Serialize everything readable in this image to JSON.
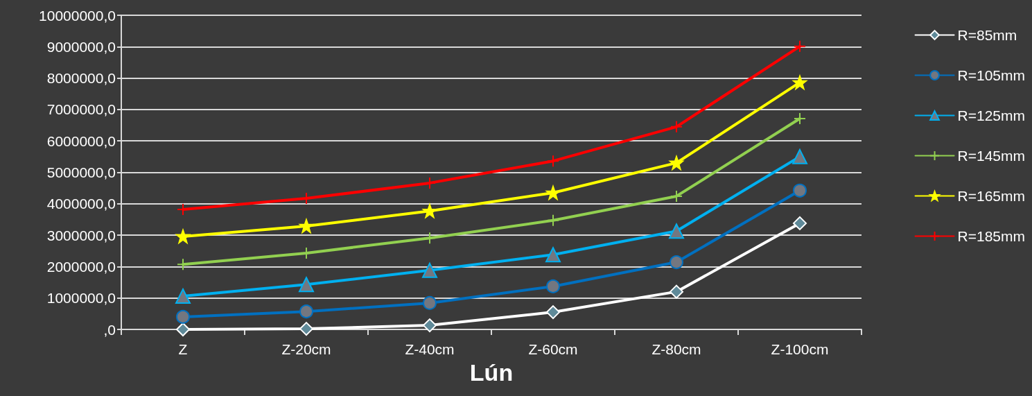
{
  "chart_data": {
    "type": "line",
    "xlabel": "Lún",
    "categories": [
      "Z",
      "Z-20cm",
      "Z-40cm",
      "Z-60cm",
      "Z-80cm",
      "Z-100cm"
    ],
    "series": [
      {
        "name": "R=85mm",
        "color": "#ffffff",
        "marker": "diamond",
        "values": [
          0,
          20000,
          130000,
          550000,
          1200000,
          3380000
        ]
      },
      {
        "name": "R=105mm",
        "color": "#0070c0",
        "marker": "circle",
        "values": [
          400000,
          570000,
          840000,
          1370000,
          2140000,
          4420000
        ]
      },
      {
        "name": "R=125mm",
        "color": "#00b0f0",
        "marker": "triangle",
        "values": [
          1060000,
          1430000,
          1880000,
          2380000,
          3130000,
          5500000
        ]
      },
      {
        "name": "R=145mm",
        "color": "#92d050",
        "marker": "cross",
        "values": [
          2070000,
          2430000,
          2910000,
          3470000,
          4240000,
          6710000
        ]
      },
      {
        "name": "R=165mm",
        "color": "#ffff00",
        "marker": "star",
        "values": [
          2960000,
          3290000,
          3770000,
          4350000,
          5300000,
          7860000
        ]
      },
      {
        "name": "R=185mm",
        "color": "#ff0000",
        "marker": "cross",
        "values": [
          3820000,
          4170000,
          4660000,
          5360000,
          6450000,
          9010000
        ]
      }
    ],
    "ylim": [
      0,
      10000000
    ],
    "yticks": [
      {
        "value": 0,
        "label": ",0"
      },
      {
        "value": 1000000,
        "label": "1000000,0"
      },
      {
        "value": 2000000,
        "label": "2000000,0"
      },
      {
        "value": 3000000,
        "label": "3000000,0"
      },
      {
        "value": 4000000,
        "label": "4000000,0"
      },
      {
        "value": 5000000,
        "label": "5000000,0"
      },
      {
        "value": 6000000,
        "label": "6000000,0"
      },
      {
        "value": 7000000,
        "label": "7000000,0"
      },
      {
        "value": 8000000,
        "label": "8000000,0"
      },
      {
        "value": 9000000,
        "label": "9000000,0"
      },
      {
        "value": 10000000,
        "label": "10000000,0"
      }
    ],
    "grid": "y",
    "legend": "right",
    "line_style": "solid"
  }
}
